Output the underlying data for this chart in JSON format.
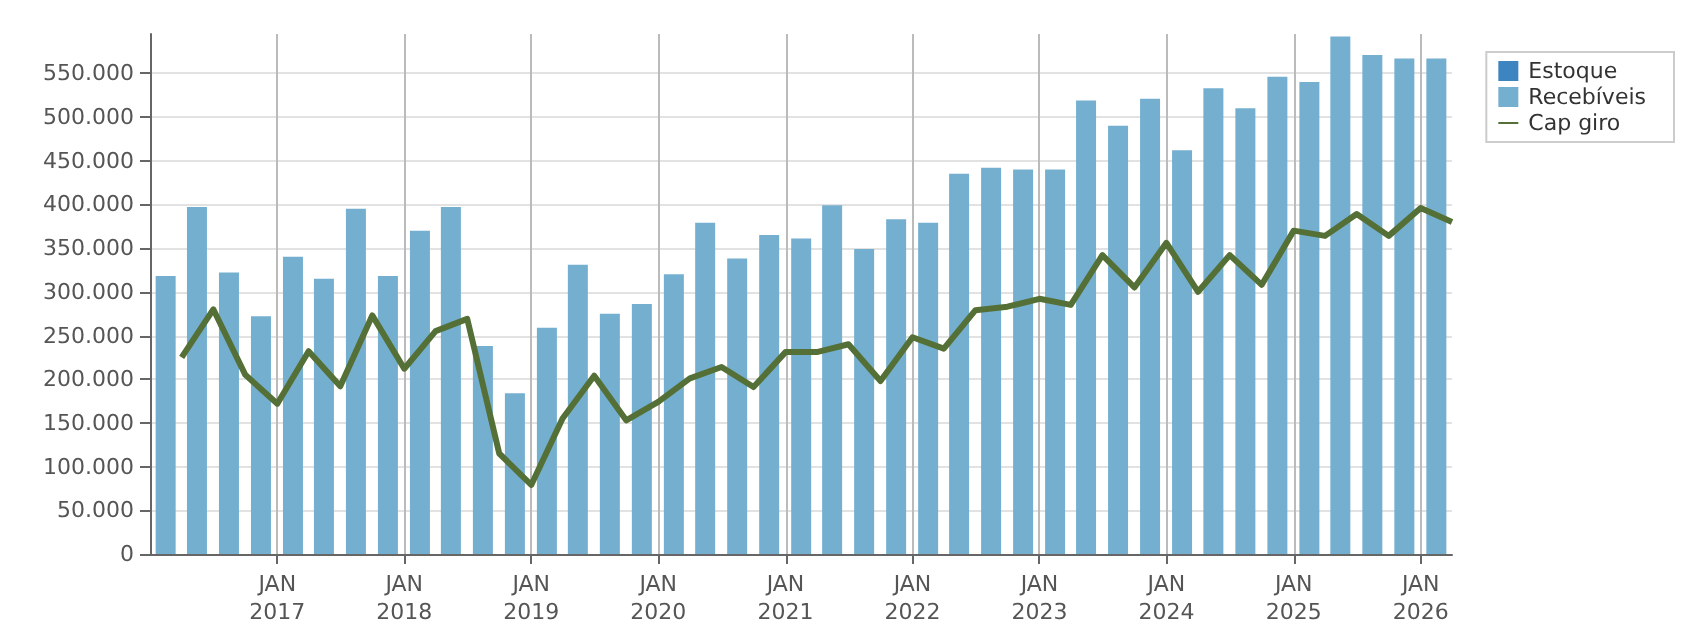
{
  "chart_data": {
    "type": "bar",
    "stacked": true,
    "xlim": [
      "2016-01",
      "2026-04"
    ],
    "xticks": [
      {
        "value": "2017-01",
        "label": "JAN\n2017"
      },
      {
        "value": "2018-01",
        "label": "JAN\n2018"
      },
      {
        "value": "2019-01",
        "label": "JAN\n2019"
      },
      {
        "value": "2020-01",
        "label": "JAN\n2020"
      },
      {
        "value": "2021-01",
        "label": "JAN\n2021"
      },
      {
        "value": "2022-01",
        "label": "JAN\n2022"
      },
      {
        "value": "2023-01",
        "label": "JAN\n2023"
      },
      {
        "value": "2024-01",
        "label": "JAN\n2024"
      },
      {
        "value": "2025-01",
        "label": "JAN\n2025"
      },
      {
        "value": "2026-01",
        "label": "JAN\n2026"
      }
    ],
    "ylim": [
      0,
      595000
    ],
    "yticks": [
      0,
      {
        "value": 50000,
        "label": "50.000"
      },
      {
        "value": 100000,
        "label": "100.000"
      },
      {
        "value": 150000,
        "label": "150.000"
      },
      {
        "value": 200000,
        "label": "200.000"
      },
      {
        "value": 250000,
        "label": "250.000"
      },
      {
        "value": 300000,
        "label": "300.000"
      },
      {
        "value": 350000,
        "label": "350.000"
      },
      {
        "value": 400000,
        "label": "400.000"
      },
      {
        "value": 450000,
        "label": "450.000"
      },
      {
        "value": 500000,
        "label": "500.000"
      },
      {
        "value": 550000,
        "label": "550.000"
      }
    ],
    "grid": true,
    "legend": "top right",
    "series": [
      {
        "name": "Estoque",
        "color": "#3d85c0",
        "x": [
          "2016-02-15",
          "2016-05-15",
          "2016-08-15",
          "2016-11-15",
          "2017-02-15",
          "2017-05-15",
          "2017-08-15",
          "2017-11-15",
          "2018-02-15",
          "2018-05-15",
          "2018-08-15",
          "2018-11-15",
          "2019-02-15",
          "2019-05-15",
          "2019-08-15",
          "2019-11-15",
          "2020-02-15",
          "2020-05-15",
          "2020-08-15",
          "2020-11-15",
          "2021-02-15",
          "2021-05-15",
          "2021-08-15",
          "2021-11-15",
          "2022-02-15",
          "2022-05-15",
          "2022-08-15",
          "2022-11-15",
          "2023-02-15",
          "2023-05-15",
          "2023-08-15",
          "2023-11-15",
          "2024-02-15",
          "2024-05-15",
          "2024-08-15",
          "2024-11-15",
          "2025-02-15",
          "2025-05-15",
          "2025-08-15",
          "2025-11-15",
          "2026-02-15"
        ],
        "values": [
          0,
          0,
          0,
          0,
          0,
          0,
          0,
          0,
          0,
          0,
          0,
          0,
          0,
          0,
          0,
          0,
          0,
          0,
          0,
          0,
          0,
          0,
          0,
          0,
          0,
          0,
          0,
          0,
          0,
          0,
          0,
          0,
          0,
          0,
          0,
          0,
          0,
          0,
          0,
          0,
          0
        ]
      },
      {
        "name": "Recebíveis",
        "color": "#74afd0",
        "x": [
          "2016-02-15",
          "2016-05-15",
          "2016-08-15",
          "2016-11-15",
          "2017-02-15",
          "2017-05-15",
          "2017-08-15",
          "2017-11-15",
          "2018-02-15",
          "2018-05-15",
          "2018-08-15",
          "2018-11-15",
          "2019-02-15",
          "2019-05-15",
          "2019-08-15",
          "2019-11-15",
          "2020-02-15",
          "2020-05-15",
          "2020-08-15",
          "2020-11-15",
          "2021-02-15",
          "2021-05-15",
          "2021-08-15",
          "2021-11-15",
          "2022-02-15",
          "2022-05-15",
          "2022-08-15",
          "2022-11-15",
          "2023-02-15",
          "2023-05-15",
          "2023-08-15",
          "2023-11-15",
          "2024-02-15",
          "2024-05-15",
          "2024-08-15",
          "2024-11-15",
          "2025-02-15",
          "2025-05-15",
          "2025-08-15",
          "2025-11-15",
          "2026-02-15"
        ],
        "values": [
          318000,
          397000,
          322000,
          272000,
          340000,
          315000,
          395000,
          318000,
          370000,
          397000,
          238000,
          184000,
          259000,
          331000,
          275000,
          286000,
          320000,
          379000,
          338000,
          365000,
          361000,
          399000,
          349000,
          383000,
          379000,
          435000,
          442000,
          440000,
          440000,
          519000,
          490000,
          521000,
          462000,
          533000,
          510000,
          546000,
          540000,
          592000,
          571000,
          567000,
          567000
        ]
      },
      {
        "name": "Cap giro",
        "type": "line",
        "color": "#557036",
        "marker": "none",
        "line_style": "solid",
        "x": [
          "2016-04",
          "2016-07",
          "2016-10",
          "2017-01",
          "2017-04",
          "2017-07",
          "2017-10",
          "2018-01",
          "2018-04",
          "2018-07",
          "2018-10",
          "2019-01",
          "2019-04",
          "2019-07",
          "2019-10",
          "2020-01",
          "2020-04",
          "2020-07",
          "2020-10",
          "2021-01",
          "2021-04",
          "2021-07",
          "2021-10",
          "2022-01",
          "2022-04",
          "2022-07",
          "2022-10",
          "2023-01",
          "2023-04",
          "2023-07",
          "2023-10",
          "2024-01",
          "2024-04",
          "2024-07",
          "2024-10",
          "2025-01",
          "2025-04",
          "2025-07",
          "2025-10",
          "2026-01",
          "2026-04"
        ],
        "values": [
          225000,
          280000,
          205000,
          172000,
          232000,
          192000,
          273000,
          212000,
          255000,
          269000,
          115000,
          79000,
          155000,
          204000,
          153000,
          174000,
          201000,
          214000,
          191000,
          231000,
          231000,
          240000,
          198000,
          248000,
          235000,
          279000,
          283000,
          292000,
          285000,
          342000,
          305000,
          356000,
          300000,
          342000,
          308000,
          370000,
          364000,
          389000,
          364000,
          396000,
          380000
        ]
      }
    ]
  }
}
